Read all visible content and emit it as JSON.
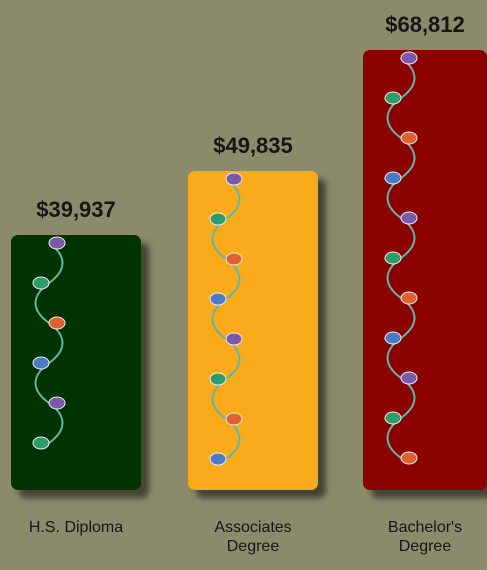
{
  "chart_data": {
    "type": "bar",
    "categories": [
      "H.S. Diploma",
      "Associates Degree",
      "Bachelor's Degree"
    ],
    "values": [
      39937,
      49835,
      68812
    ],
    "value_labels": [
      "$39,937",
      "$49,835",
      "$68,812"
    ],
    "colors": [
      "#003300",
      "#f9ab1c",
      "#8b0000"
    ]
  }
}
